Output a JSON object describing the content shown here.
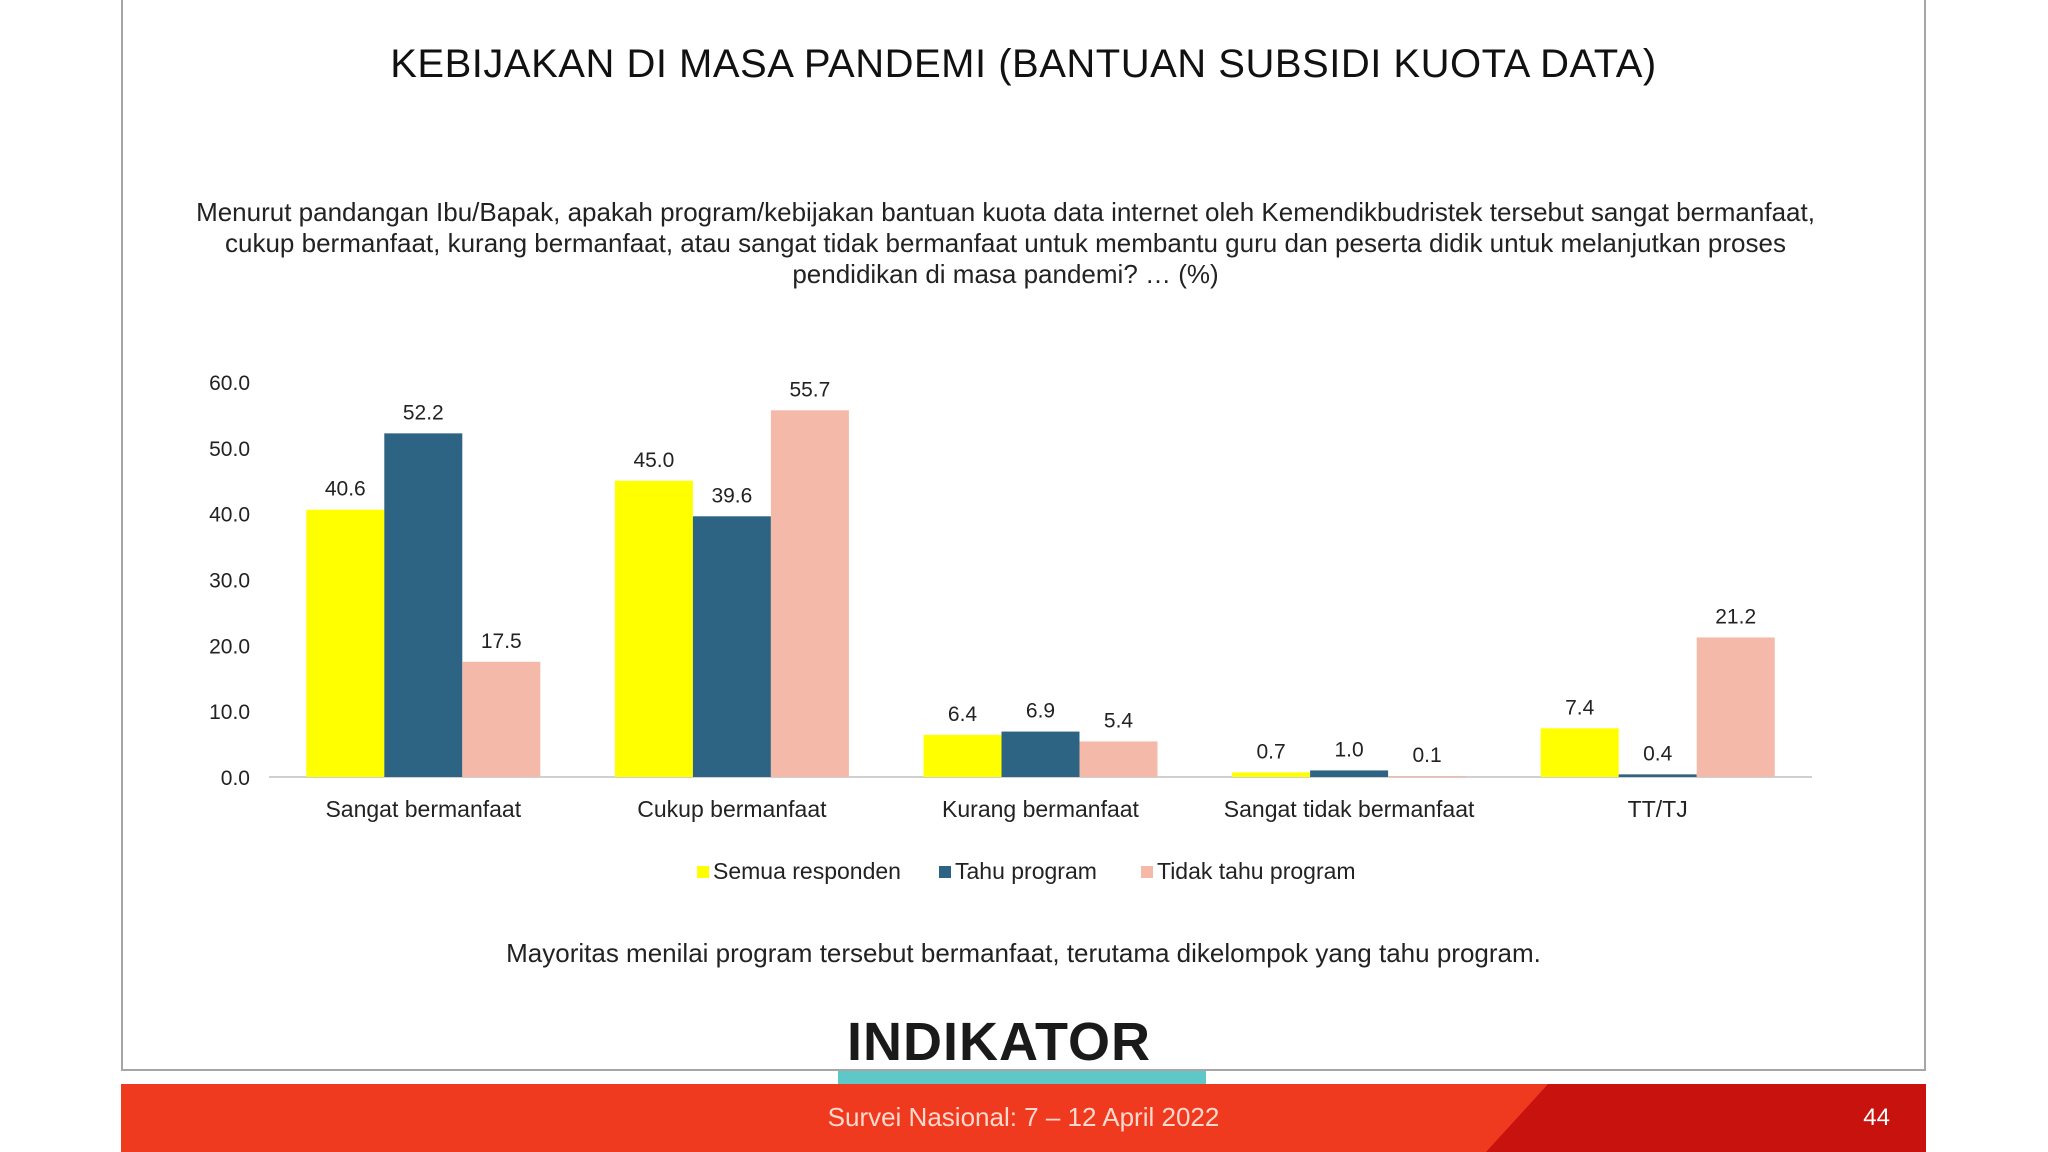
{
  "slide": {
    "title": "KEBIJAKAN DI MASA PANDEMI (BANTUAN SUBSIDI KUOTA DATA)",
    "question": "Menurut pandangan Ibu/Bapak, apakah program/kebijakan bantuan kuota data internet oleh Kemendikbudristek tersebut sangat bermanfaat, cukup bermanfaat, kurang bermanfaat, atau sangat tidak bermanfaat untuk membantu guru dan peserta didik untuk melanjutkan proses pendidikan di masa pandemi? … (%)",
    "conclusion": "Mayoritas menilai program tersebut bermanfaat, terutama dikelompok yang tahu program.",
    "logo_text": "INDIKATOR",
    "footer_text": "Survei Nasional: 7 – 12 April 2022",
    "page_number": "44"
  },
  "chart_data": {
    "type": "bar",
    "title": "",
    "xlabel": "",
    "ylabel": "",
    "ylim": [
      0,
      60
    ],
    "yticks": [
      "0.0",
      "10.0",
      "20.0",
      "30.0",
      "40.0",
      "50.0",
      "60.0"
    ],
    "grid": false,
    "legend": "bottom",
    "categories": [
      "Sangat bermanfaat",
      "Cukup bermanfaat",
      "Kurang bermanfaat",
      "Sangat tidak bermanfaat",
      "TT/TJ"
    ],
    "series": [
      {
        "name": "Semua responden",
        "color": "#ffff00",
        "values": [
          40.6,
          45.0,
          6.4,
          0.7,
          7.4
        ],
        "labels": [
          "40.6",
          "45.0",
          "6.4",
          "0.7",
          "7.4"
        ]
      },
      {
        "name": "Tahu program",
        "color": "#2e6483",
        "values": [
          52.2,
          39.6,
          6.9,
          1.0,
          0.4
        ],
        "labels": [
          "52.2",
          "39.6",
          "6.9",
          "1.0",
          "0.4"
        ]
      },
      {
        "name": "Tidak tahu program",
        "color": "#f4b9a9",
        "values": [
          17.5,
          55.7,
          5.4,
          0.1,
          21.2
        ],
        "labels": [
          "17.5",
          "55.7",
          "5.4",
          "0.1",
          "21.2"
        ]
      }
    ]
  }
}
